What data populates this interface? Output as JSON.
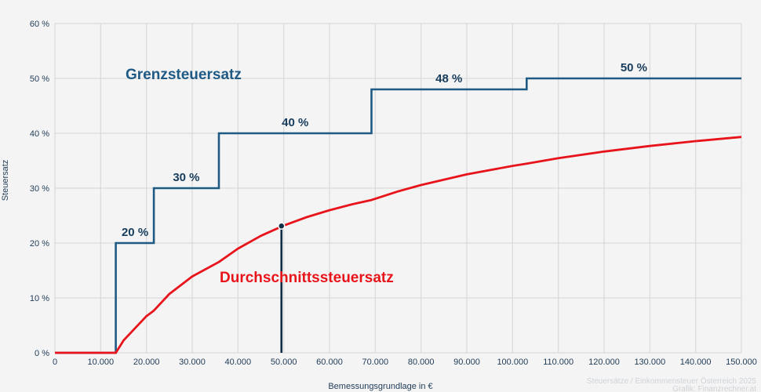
{
  "chart_data": {
    "type": "line",
    "title": "",
    "xlabel": "Bemessungsgrundlage in €",
    "ylabel": "Steuersatz",
    "xlim": [
      0,
      150000
    ],
    "ylim": [
      0,
      60
    ],
    "grid": true,
    "x_ticks": [
      0,
      10000,
      20000,
      30000,
      40000,
      50000,
      60000,
      70000,
      80000,
      90000,
      100000,
      110000,
      120000,
      130000,
      140000,
      150000
    ],
    "x_tick_labels": [
      "0",
      "10.000",
      "20.000",
      "30.000",
      "40.000",
      "50.000",
      "60.000",
      "70.000",
      "80.000",
      "90.000",
      "100.000",
      "110.000",
      "120.000",
      "130.000",
      "140.000",
      "150.000"
    ],
    "y_ticks": [
      0,
      10,
      20,
      30,
      40,
      50,
      60
    ],
    "y_tick_labels": [
      "0 %",
      "10 %",
      "20 %",
      "30 %",
      "40 %",
      "50 %",
      "60 %"
    ],
    "series": [
      {
        "name": "Grenzsteuersatz",
        "color": "#1f5a85",
        "kind": "step",
        "x": [
          0,
          13308,
          13308,
          21617,
          21617,
          35836,
          35836,
          69166,
          69166,
          103072,
          103072,
          150000
        ],
        "values": [
          0,
          0,
          20,
          20,
          30,
          30,
          40,
          40,
          48,
          48,
          50,
          50
        ]
      },
      {
        "name": "Durchschnittssteuersatz",
        "color": "#e8141b",
        "kind": "line",
        "x": [
          0,
          13308,
          15000,
          20000,
          21617,
          25000,
          30000,
          35836,
          40000,
          45000,
          50000,
          55000,
          60000,
          65000,
          69166,
          75000,
          80000,
          90000,
          100000,
          103072,
          110000,
          120000,
          130000,
          140000,
          150000
        ],
        "values": [
          0,
          0,
          2.26,
          6.69,
          7.69,
          10.71,
          13.92,
          16.54,
          18.98,
          21.32,
          23.19,
          24.71,
          25.99,
          27.07,
          27.85,
          29.41,
          30.57,
          32.51,
          34.06,
          34.47,
          35.45,
          36.67,
          37.69,
          38.57,
          39.33
        ]
      }
    ],
    "step_labels": [
      {
        "text": "20 %",
        "x": 17500,
        "y": 20
      },
      {
        "text": "30 %",
        "x": 28700,
        "y": 30
      },
      {
        "text": "40 %",
        "x": 52500,
        "y": 40
      },
      {
        "text": "48 %",
        "x": 86100,
        "y": 48
      },
      {
        "text": "50 %",
        "x": 126500,
        "y": 50
      }
    ],
    "series_labels": [
      {
        "text": "Grenzsteuersatz",
        "color": "#1f5a85"
      },
      {
        "text": "Durchschnittssteuersatz",
        "color": "#e8141b"
      }
    ],
    "marker": {
      "x": 49500,
      "y": 23.1,
      "color": "#0f2d47"
    },
    "annotations": [
      "Steuersätze / Einkommensteuer Österreich 2025",
      "Grafik: Finanzrechner.at"
    ]
  }
}
